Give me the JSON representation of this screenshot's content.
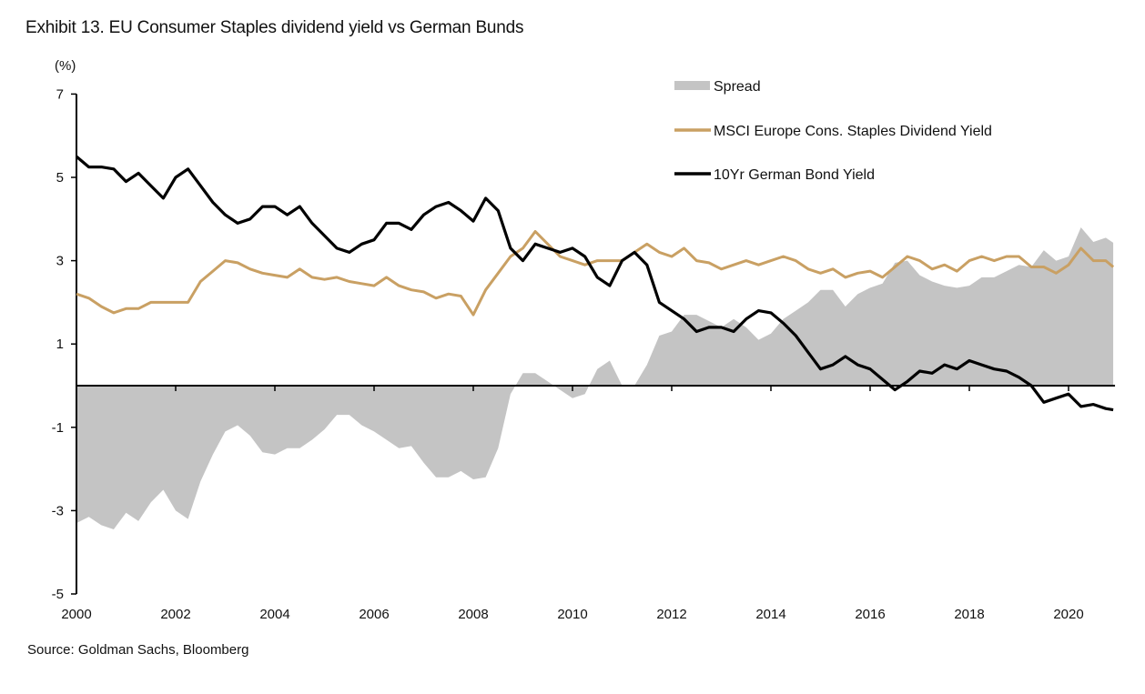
{
  "chart_data": {
    "type": "line",
    "title": "Exhibit 13. EU Consumer Staples dividend yield vs German Bunds",
    "ylabel": "(%)",
    "xlabel": "",
    "source": "Source: Goldman Sachs, Bloomberg",
    "ylim": [
      -5,
      7
    ],
    "xlim": [
      2000,
      2021
    ],
    "yticks": [
      7,
      5,
      3,
      1,
      -1,
      -3,
      -5
    ],
    "xticks": [
      "2000",
      "2002",
      "2004",
      "2006",
      "2008",
      "2010",
      "2012",
      "2014",
      "2016",
      "2018",
      "2020"
    ],
    "grid": false,
    "legend_position": "top-right",
    "x": [
      2000.0,
      2000.25,
      2000.5,
      2000.75,
      2001.0,
      2001.25,
      2001.5,
      2001.75,
      2002.0,
      2002.25,
      2002.5,
      2002.75,
      2003.0,
      2003.25,
      2003.5,
      2003.75,
      2004.0,
      2004.25,
      2004.5,
      2004.75,
      2005.0,
      2005.25,
      2005.5,
      2005.75,
      2006.0,
      2006.25,
      2006.5,
      2006.75,
      2007.0,
      2007.25,
      2007.5,
      2007.75,
      2008.0,
      2008.25,
      2008.5,
      2008.75,
      2009.0,
      2009.25,
      2009.5,
      2009.75,
      2010.0,
      2010.25,
      2010.5,
      2010.75,
      2011.0,
      2011.25,
      2011.5,
      2011.75,
      2012.0,
      2012.25,
      2012.5,
      2012.75,
      2013.0,
      2013.25,
      2013.5,
      2013.75,
      2014.0,
      2014.25,
      2014.5,
      2014.75,
      2015.0,
      2015.25,
      2015.5,
      2015.75,
      2016.0,
      2016.25,
      2016.5,
      2016.75,
      2017.0,
      2017.25,
      2017.5,
      2017.75,
      2018.0,
      2018.25,
      2018.5,
      2018.75,
      2019.0,
      2019.25,
      2019.5,
      2019.75,
      2020.0,
      2020.25,
      2020.5,
      2020.75,
      2020.9
    ],
    "series": [
      {
        "name": "Spread",
        "kind": "area",
        "color": "#c4c4c4",
        "derived": "MSCI Europe Cons. Staples Dividend Yield minus 10Yr German Bond Yield"
      },
      {
        "name": "MSCI Europe Cons. Staples Dividend Yield",
        "kind": "line",
        "color": "#c9a063",
        "values": [
          2.2,
          2.1,
          1.9,
          1.75,
          1.85,
          1.85,
          2.0,
          2.0,
          2.0,
          2.0,
          2.5,
          2.75,
          3.0,
          2.95,
          2.8,
          2.7,
          2.65,
          2.6,
          2.8,
          2.6,
          2.55,
          2.6,
          2.5,
          2.45,
          2.4,
          2.6,
          2.4,
          2.3,
          2.25,
          2.1,
          2.2,
          2.15,
          1.7,
          2.3,
          2.7,
          3.1,
          3.3,
          3.7,
          3.4,
          3.1,
          3.0,
          2.9,
          3.0,
          3.0,
          3.0,
          3.2,
          3.4,
          3.2,
          3.1,
          3.3,
          3.0,
          2.95,
          2.8,
          2.9,
          3.0,
          2.9,
          3.0,
          3.1,
          3.0,
          2.8,
          2.7,
          2.8,
          2.6,
          2.7,
          2.75,
          2.6,
          2.85,
          3.1,
          3.0,
          2.8,
          2.9,
          2.75,
          3.0,
          3.1,
          3.0,
          3.1,
          3.1,
          2.85,
          2.85,
          2.7,
          2.9,
          3.3,
          3.0,
          3.0,
          2.85
        ]
      },
      {
        "name": "10Yr German Bond Yield",
        "kind": "line",
        "color": "#000000",
        "values": [
          5.5,
          5.25,
          5.25,
          5.2,
          4.9,
          5.1,
          4.8,
          4.5,
          5.0,
          5.2,
          4.8,
          4.4,
          4.1,
          3.9,
          4.0,
          4.3,
          4.3,
          4.1,
          4.3,
          3.9,
          3.6,
          3.3,
          3.2,
          3.4,
          3.5,
          3.9,
          3.9,
          3.75,
          4.1,
          4.3,
          4.4,
          4.2,
          3.95,
          4.5,
          4.2,
          3.3,
          3.0,
          3.4,
          3.3,
          3.2,
          3.3,
          3.1,
          2.6,
          2.4,
          3.0,
          3.2,
          2.9,
          2.0,
          1.8,
          1.6,
          1.3,
          1.4,
          1.4,
          1.3,
          1.6,
          1.8,
          1.75,
          1.5,
          1.2,
          0.8,
          0.4,
          0.5,
          0.7,
          0.5,
          0.4,
          0.15,
          -0.1,
          0.1,
          0.35,
          0.3,
          0.5,
          0.4,
          0.6,
          0.5,
          0.4,
          0.35,
          0.2,
          0.0,
          -0.4,
          -0.3,
          -0.2,
          -0.5,
          -0.45,
          -0.55,
          -0.58
        ]
      }
    ]
  }
}
